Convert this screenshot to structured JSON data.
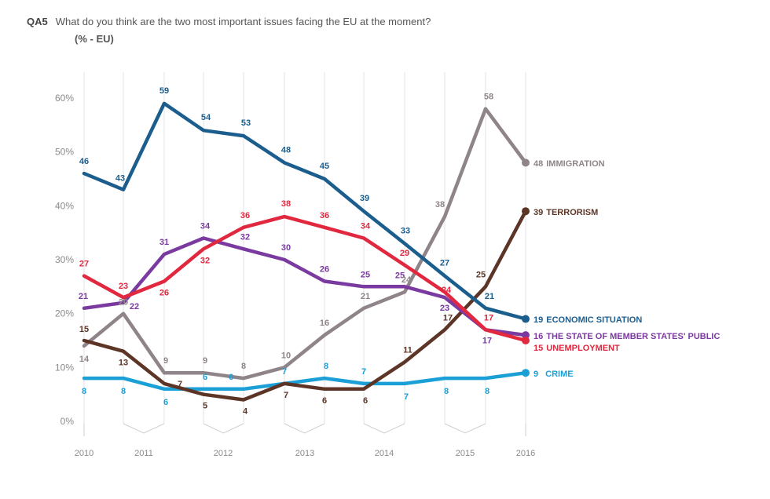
{
  "header": {
    "code": "QA5",
    "question": "What do you think are the two most important issues facing the EU at the moment?",
    "unit": "(% - EU)"
  },
  "chart_data": {
    "type": "line",
    "title": "What do you think are the two most important issues facing the EU at the moment?",
    "ylabel": "",
    "xlabel": "",
    "ylim": [
      0,
      60
    ],
    "y_ticks": [
      "0%",
      "10%",
      "20%",
      "30%",
      "40%",
      "50%",
      "60%"
    ],
    "y_tick_values": [
      0,
      10,
      20,
      30,
      40,
      50,
      60
    ],
    "x_labels": [
      "2010",
      "2011",
      "2012",
      "2013",
      "2014",
      "2015",
      "2016"
    ],
    "survey_points": 12,
    "grid": "vertical",
    "legend": "right-end labels",
    "series": [
      {
        "name": "CRIME",
        "color": "#1a9fd6",
        "values": [
          8,
          8,
          6,
          6,
          6,
          7,
          8,
          7,
          7,
          8,
          8,
          9
        ],
        "end_label": "9"
      },
      {
        "name": "ECONOMIC SITUATION",
        "color": "#1b5e8e",
        "values": [
          46,
          43,
          59,
          54,
          53,
          48,
          45,
          39,
          33,
          27,
          21,
          19
        ],
        "end_label": "19"
      },
      {
        "name": "UNEMPLOYMENT",
        "color": "#e1283f",
        "values": [
          27,
          23,
          26,
          32,
          36,
          38,
          36,
          34,
          29,
          24,
          17,
          15
        ],
        "end_label": "15"
      },
      {
        "name": "THE STATE OF MEMBER STATES' PUBLIC",
        "color": "#7a3aa0",
        "values": [
          21,
          22,
          31,
          34,
          32,
          30,
          26,
          25,
          25,
          23,
          17,
          16
        ],
        "end_label": "16"
      },
      {
        "name": "IMMIGRATION",
        "color": "#8e8489",
        "values": [
          14,
          20,
          9,
          9,
          8,
          10,
          16,
          21,
          24,
          38,
          58,
          48
        ],
        "end_label": "48"
      },
      {
        "name": "TERRORISM",
        "color": "#5c3526",
        "values": [
          15,
          13,
          7,
          5,
          4,
          7,
          6,
          6,
          11,
          17,
          25,
          39
        ],
        "end_label": "39"
      }
    ]
  }
}
